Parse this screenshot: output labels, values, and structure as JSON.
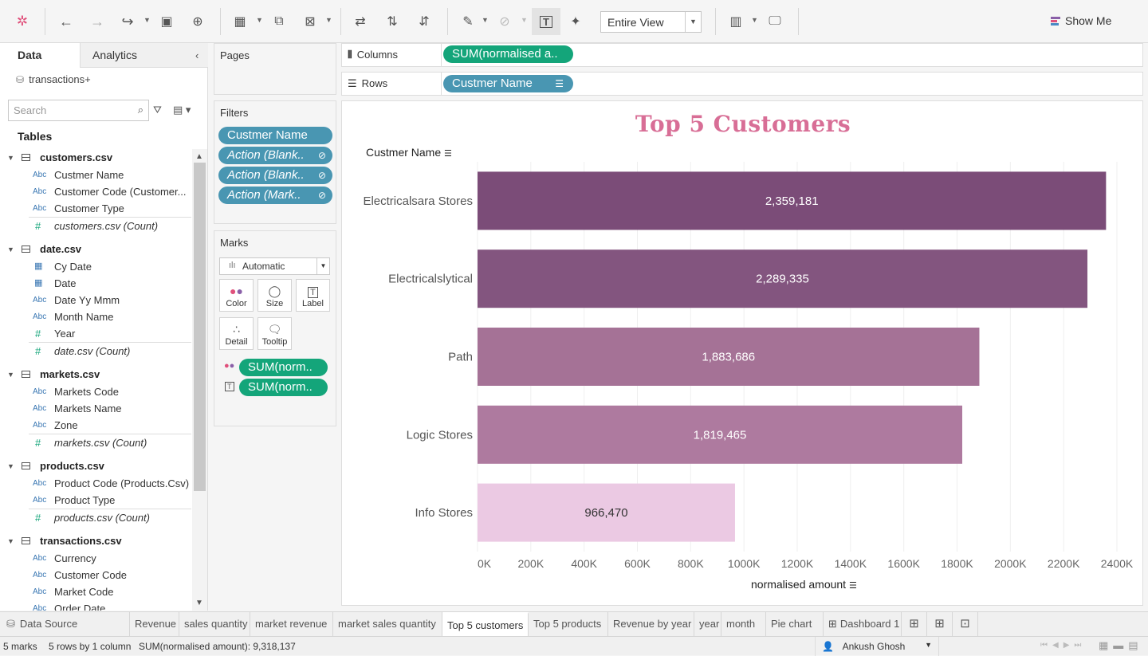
{
  "toolbar": {
    "view_mode": "Entire View",
    "show_me": "Show Me"
  },
  "data_pane": {
    "tab_data": "Data",
    "tab_analytics": "Analytics",
    "datasource": "transactions+",
    "search_placeholder": "Search",
    "tables_title": "Tables",
    "tables": [
      {
        "name": "customers.csv",
        "fields": [
          {
            "type": "Abc",
            "label": "Custmer Name"
          },
          {
            "type": "Abc",
            "label": "Customer Code (Customer..."
          },
          {
            "type": "Abc",
            "label": "Customer Type"
          }
        ],
        "count": "customers.csv (Count)"
      },
      {
        "name": "date.csv",
        "fields": [
          {
            "type": "cal",
            "label": "Cy Date"
          },
          {
            "type": "cal",
            "label": "Date"
          },
          {
            "type": "Abc",
            "label": "Date Yy Mmm"
          },
          {
            "type": "Abc",
            "label": "Month Name"
          },
          {
            "type": "#",
            "label": "Year"
          }
        ],
        "count": "date.csv (Count)"
      },
      {
        "name": "markets.csv",
        "fields": [
          {
            "type": "Abc",
            "label": "Markets Code"
          },
          {
            "type": "Abc",
            "label": "Markets Name"
          },
          {
            "type": "Abc",
            "label": "Zone"
          }
        ],
        "count": "markets.csv (Count)"
      },
      {
        "name": "products.csv",
        "fields": [
          {
            "type": "Abc",
            "label": "Product Code (Products.Csv)"
          },
          {
            "type": "Abc",
            "label": "Product Type"
          }
        ],
        "count": "products.csv (Count)"
      },
      {
        "name": "transactions.csv",
        "fields": [
          {
            "type": "Abc",
            "label": "Currency"
          },
          {
            "type": "Abc",
            "label": "Customer Code"
          },
          {
            "type": "Abc",
            "label": "Market Code"
          },
          {
            "type": "Abc",
            "label": "Order Date"
          }
        ],
        "count": ""
      }
    ]
  },
  "cards": {
    "pages": "Pages",
    "filters": "Filters",
    "filter_pills": [
      "Custmer Name",
      "Action (Blank..",
      "Action (Blank..",
      "Action (Mark.."
    ],
    "marks": "Marks",
    "marks_type": "Automatic",
    "mark_buttons": [
      "Color",
      "Size",
      "Label",
      "Detail",
      "Tooltip"
    ],
    "mark_pills": [
      "SUM(norm..",
      "SUM(norm.."
    ]
  },
  "shelves": {
    "columns_label": "Columns",
    "columns_pill": "SUM(normalised a..",
    "rows_label": "Rows",
    "rows_pill": "Custmer Name"
  },
  "chart_data": {
    "type": "bar",
    "title": "Top 5 Customers",
    "row_header": "Custmer Name",
    "xlabel": "normalised amount",
    "categories": [
      "Electricalsara Stores",
      "Electricalslytical",
      "Path",
      "Logic Stores",
      "Info Stores"
    ],
    "values": [
      2359181,
      2289335,
      1883686,
      1819465,
      966470
    ],
    "value_labels": [
      "2,359,181",
      "2,289,335",
      "1,883,686",
      "1,819,465",
      "966,470"
    ],
    "bar_colors": [
      "#7b4c78",
      "#83557f",
      "#a57296",
      "#ae7a9f",
      "#ebc9e3"
    ],
    "label_colors": [
      "#ffffff",
      "#ffffff",
      "#ffffff",
      "#ffffff",
      "#333333"
    ],
    "xlim": [
      0,
      2400000
    ],
    "xticks": [
      "0K",
      "200K",
      "400K",
      "600K",
      "800K",
      "1000K",
      "1200K",
      "1400K",
      "1600K",
      "1800K",
      "2000K",
      "2200K",
      "2400K"
    ],
    "title_color": "#d86e96"
  },
  "sheet_tabs": {
    "data_source": "Data Source",
    "tabs": [
      "Revenue",
      "sales quantity",
      "market revenue",
      "market sales quantity",
      "Top 5 customers",
      "Top 5 products",
      "Revenue by year",
      "year",
      "month",
      "Pie chart",
      "Dashboard 1"
    ],
    "active": "Top 5 customers"
  },
  "status": {
    "marks": "5 marks",
    "rows": "5 rows by 1 column",
    "sum": "SUM(normalised amount): 9,318,137",
    "user": "Ankush Ghosh"
  }
}
